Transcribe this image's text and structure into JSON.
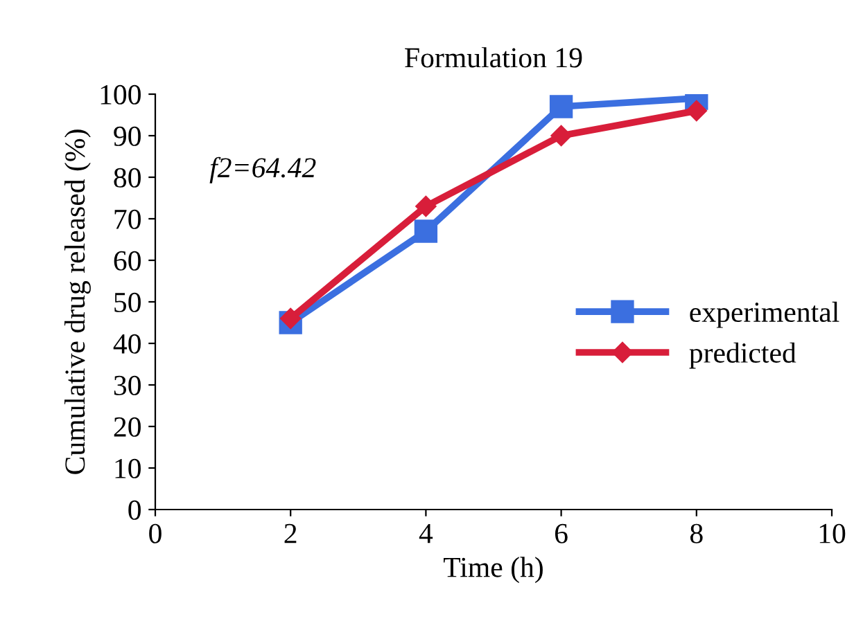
{
  "chart_data": {
    "type": "line",
    "title": "Formulation 19",
    "xlabel": "Time (h)",
    "ylabel": "Cumulative drug released (%)",
    "x": [
      2,
      4,
      6,
      8
    ],
    "series": [
      {
        "name": "experimental",
        "color": "#3b6fe0",
        "marker": "square",
        "values": [
          45,
          67,
          97,
          99
        ]
      },
      {
        "name": "predicted",
        "color": "#d81e3a",
        "marker": "diamond",
        "values": [
          46,
          73,
          90,
          96
        ]
      }
    ],
    "xlim": [
      0,
      10
    ],
    "xticks": [
      0,
      2,
      4,
      6,
      8,
      10
    ],
    "ylim": [
      0,
      100
    ],
    "yticks": [
      0,
      10,
      20,
      30,
      40,
      50,
      60,
      70,
      80,
      90,
      100
    ],
    "annotations": [
      "f2=64.42"
    ],
    "grid": false,
    "legend": "right",
    "line_style": "solid"
  }
}
